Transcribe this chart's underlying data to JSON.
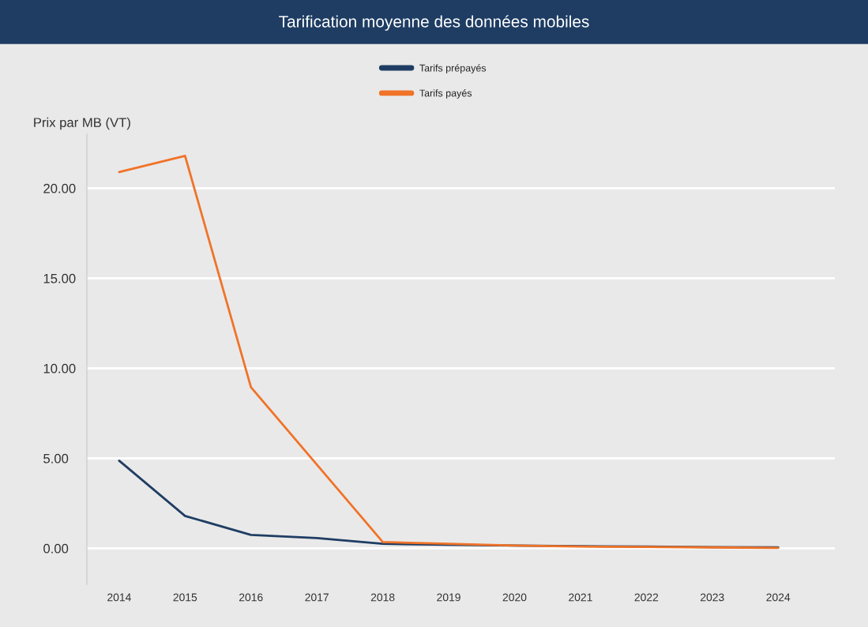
{
  "chart_data": {
    "type": "line",
    "title": "Tarification moyenne des données mobiles",
    "ylabel": "Prix par MB (VT)",
    "categories": [
      "2014",
      "2015",
      "2016",
      "2017",
      "2018",
      "2019",
      "2020",
      "2021",
      "2022",
      "2023",
      "2024"
    ],
    "series": [
      {
        "name": "Tarifs prépayés",
        "color": "#1f3d63",
        "values": [
          4.87,
          1.8,
          0.75,
          0.57,
          0.25,
          0.2,
          0.15,
          0.12,
          0.1,
          0.07,
          0.05
        ]
      },
      {
        "name": "Tarifs payés",
        "color": "#f07328",
        "values": [
          20.9,
          21.8,
          8.95,
          4.65,
          0.35,
          0.25,
          0.15,
          0.1,
          0.08,
          0.05,
          0.02
        ]
      }
    ],
    "ylim": [
      -2,
      23
    ],
    "yticks": [
      {
        "value": 0,
        "label": "0.00"
      },
      {
        "value": 5,
        "label": "5.00"
      },
      {
        "value": 10,
        "label": "10.00"
      },
      {
        "value": 15,
        "label": "15.00"
      },
      {
        "value": 20,
        "label": "20.00"
      }
    ],
    "grid": "y",
    "legend": "top",
    "marker": "none",
    "line_style": "solid"
  }
}
